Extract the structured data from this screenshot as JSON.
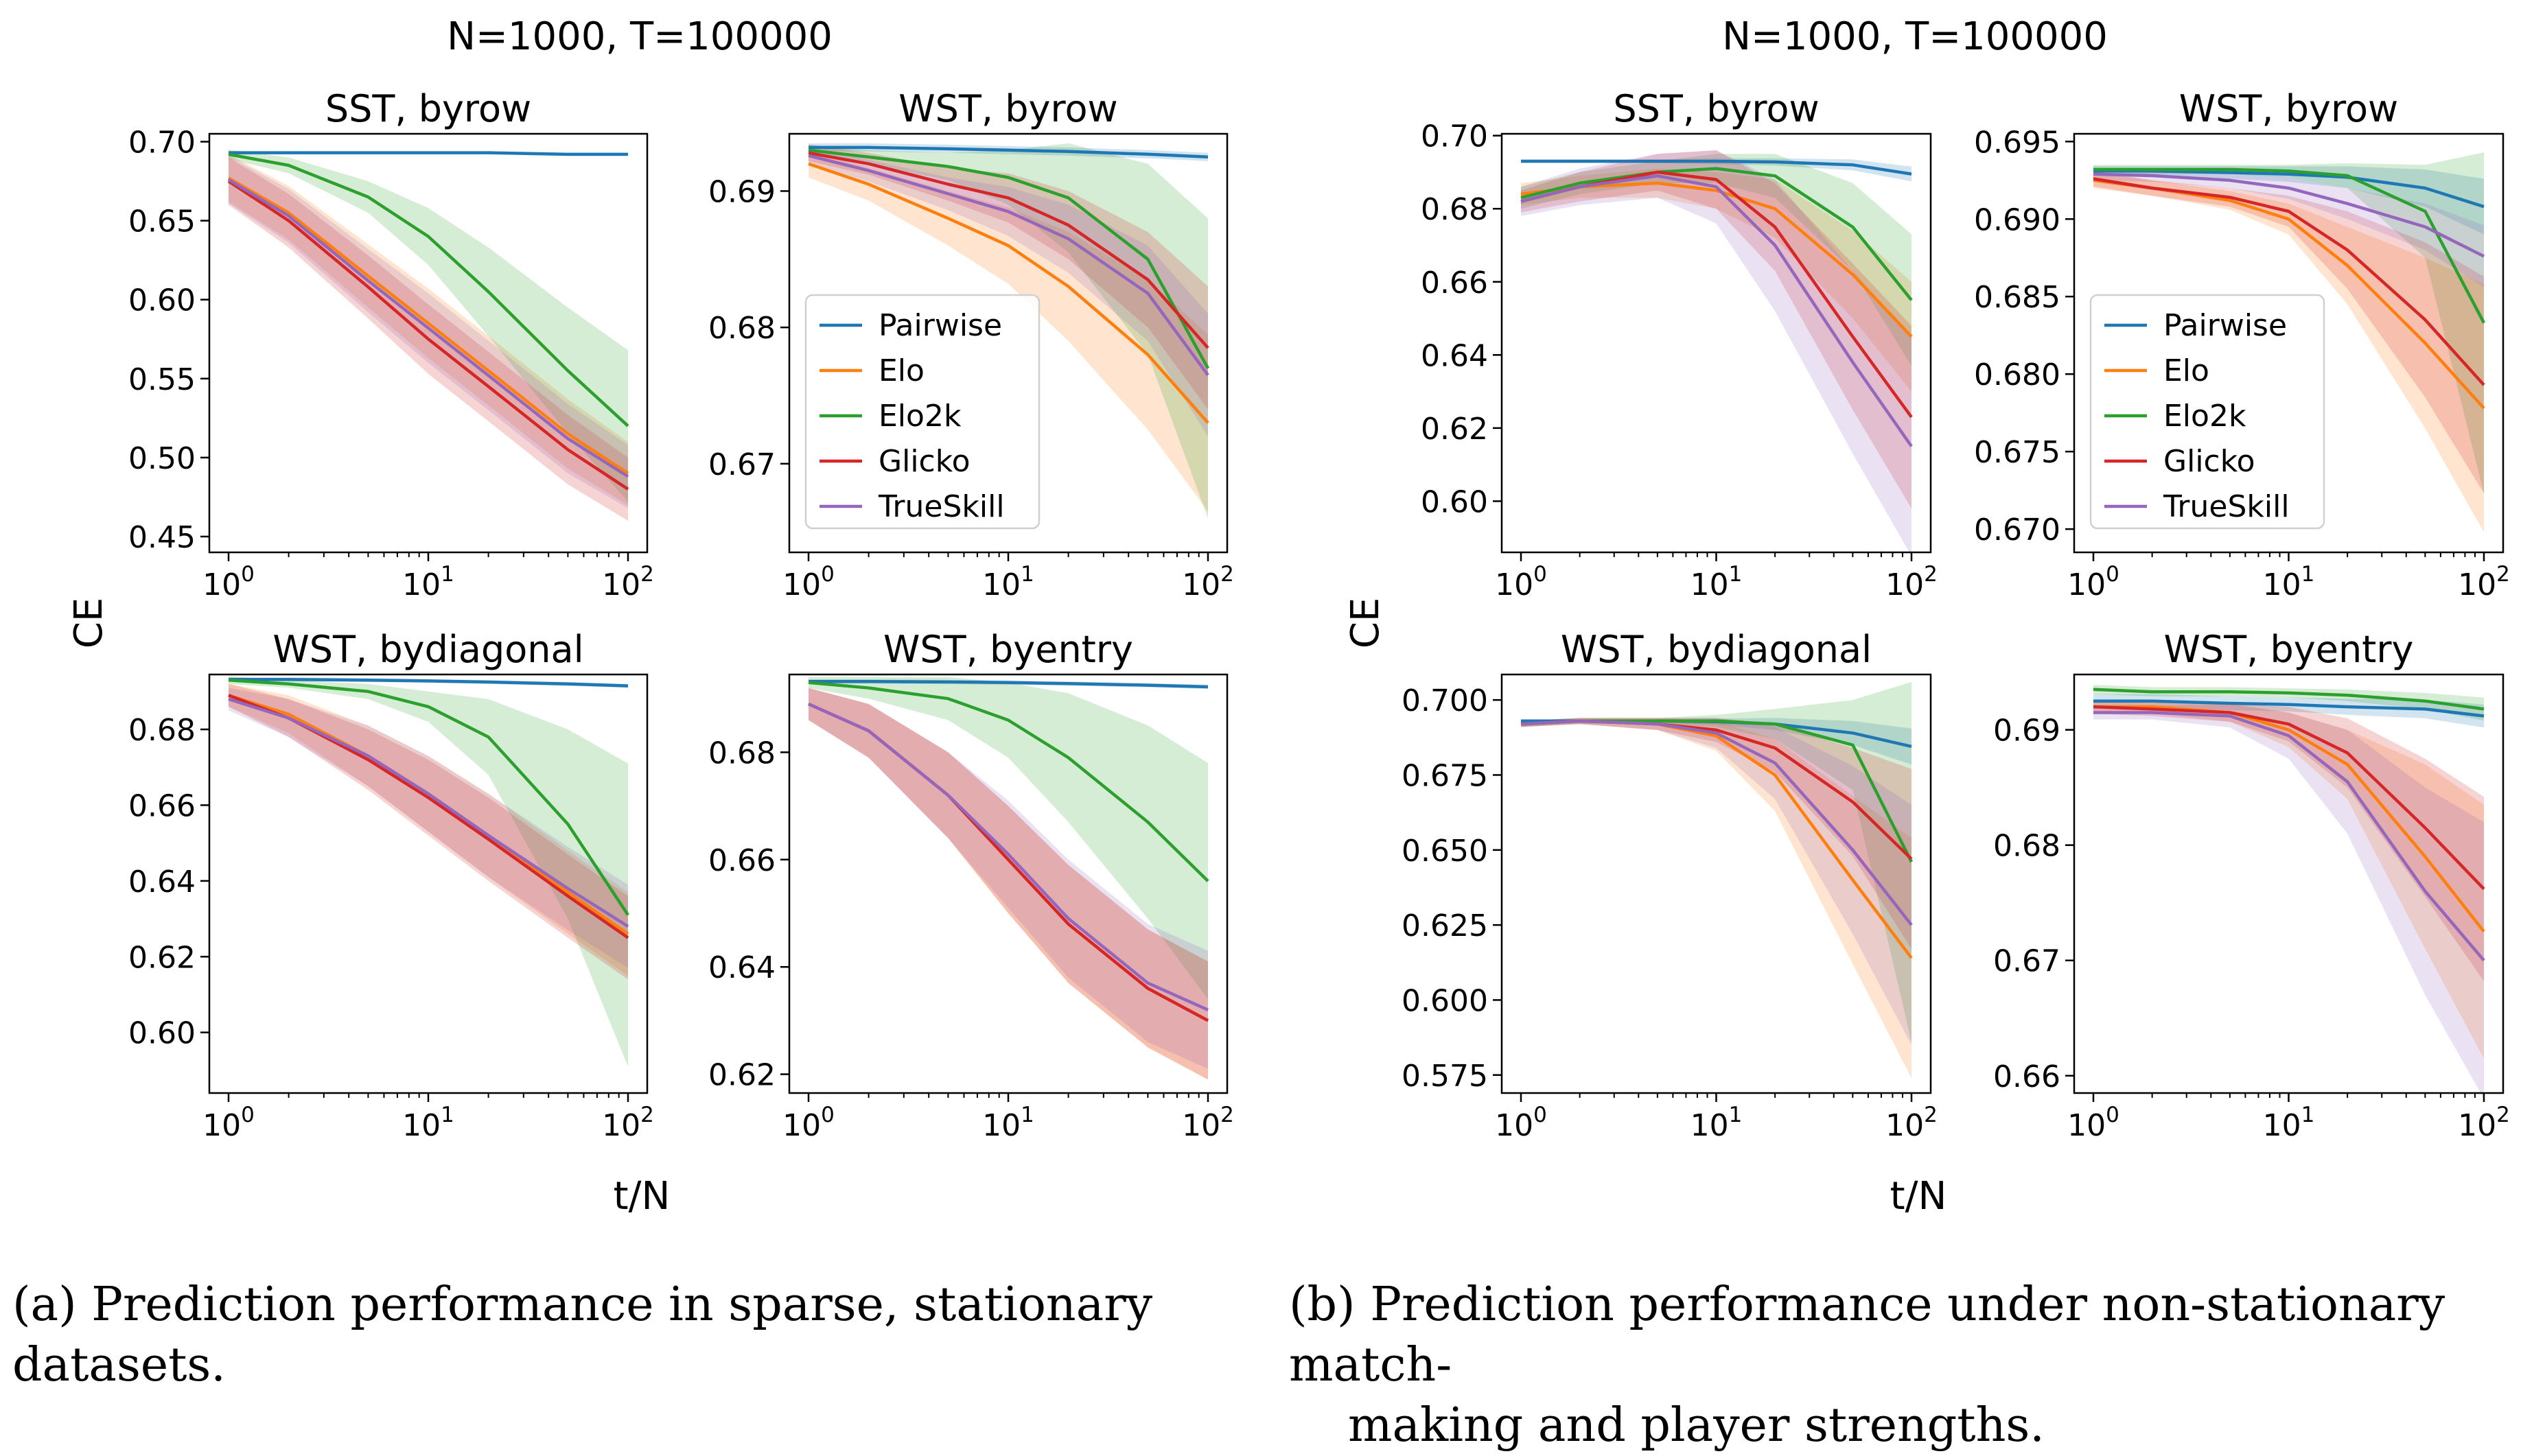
{
  "figure": {
    "panel_a": {
      "suptitle": "N=1000, T=100000",
      "ylabel": "CE",
      "xlabel": "t/N"
    },
    "panel_b": {
      "suptitle": "N=1000, T=100000",
      "ylabel": "CE",
      "xlabel": "t/N"
    },
    "legend": [
      "Pairwise",
      "Elo",
      "Elo2k",
      "Glicko",
      "TrueSkill"
    ]
  },
  "colors": {
    "Pairwise": "#1f77b4",
    "Elo": "#ff7f0e",
    "Elo2k": "#2ca02c",
    "Glicko": "#d62728",
    "TrueSkill": "#9467bd"
  },
  "captions": {
    "a": "(a) Prediction performance in sparse, stationary datasets.",
    "b_line1": "(b) Prediction performance under non-stationary match-",
    "b_line2": "making and player strengths."
  },
  "chart_data": [
    {
      "panel": "a",
      "title": "SST, byrow",
      "type": "line",
      "xscale": "log",
      "xlim": [
        1,
        100
      ],
      "ylim": [
        0.44,
        0.705
      ],
      "yticks": [
        0.45,
        0.5,
        0.55,
        0.6,
        0.65,
        0.7
      ],
      "ytick_decimals": 2,
      "legend": false,
      "x": [
        1,
        2,
        5,
        10,
        20,
        50,
        100
      ],
      "series": [
        {
          "name": "Pairwise",
          "values": [
            0.693,
            0.693,
            0.693,
            0.693,
            0.693,
            0.692,
            0.692
          ],
          "band": [
            0.001,
            0.001,
            0.001,
            0.001,
            0.001,
            0.001,
            0.001
          ]
        },
        {
          "name": "Elo",
          "values": [
            0.677,
            0.655,
            0.615,
            0.585,
            0.555,
            0.515,
            0.49
          ],
          "band": [
            0.015,
            0.017,
            0.02,
            0.022,
            0.022,
            0.022,
            0.02
          ]
        },
        {
          "name": "Elo2k",
          "values": [
            0.692,
            0.685,
            0.665,
            0.64,
            0.605,
            0.555,
            0.52
          ],
          "band": [
            0.003,
            0.005,
            0.01,
            0.018,
            0.028,
            0.04,
            0.048
          ]
        },
        {
          "name": "Glicko",
          "values": [
            0.675,
            0.65,
            0.608,
            0.575,
            0.545,
            0.505,
            0.48
          ],
          "band": [
            0.015,
            0.017,
            0.02,
            0.022,
            0.022,
            0.022,
            0.02
          ]
        },
        {
          "name": "TrueSkill",
          "values": [
            0.676,
            0.653,
            0.612,
            0.582,
            0.552,
            0.512,
            0.488
          ],
          "band": [
            0.015,
            0.017,
            0.02,
            0.022,
            0.022,
            0.022,
            0.02
          ]
        }
      ]
    },
    {
      "panel": "a",
      "title": "WST, byrow",
      "type": "line",
      "xscale": "log",
      "xlim": [
        1,
        100
      ],
      "ylim": [
        0.6635,
        0.6942
      ],
      "yticks": [
        0.67,
        0.68,
        0.69
      ],
      "ytick_decimals": 2,
      "legend": true,
      "x": [
        1,
        2,
        5,
        10,
        20,
        50,
        100
      ],
      "series": [
        {
          "name": "Pairwise",
          "values": [
            0.6932,
            0.6932,
            0.6931,
            0.693,
            0.6929,
            0.6927,
            0.6925
          ],
          "band": [
            0.0003,
            0.0003,
            0.0003,
            0.0003,
            0.0003,
            0.0003,
            0.0003
          ]
        },
        {
          "name": "Elo",
          "values": [
            0.692,
            0.6905,
            0.688,
            0.686,
            0.683,
            0.678,
            0.673
          ],
          "band": [
            0.001,
            0.0012,
            0.002,
            0.0028,
            0.004,
            0.0055,
            0.0065
          ]
        },
        {
          "name": "Elo2k",
          "values": [
            0.693,
            0.6925,
            0.6918,
            0.691,
            0.6895,
            0.685,
            0.677
          ],
          "band": [
            0.0004,
            0.0005,
            0.001,
            0.002,
            0.004,
            0.007,
            0.011
          ]
        },
        {
          "name": "Glicko",
          "values": [
            0.6928,
            0.692,
            0.6905,
            0.6895,
            0.6875,
            0.6835,
            0.6785
          ],
          "band": [
            0.0006,
            0.0008,
            0.0012,
            0.0018,
            0.0025,
            0.0035,
            0.0045
          ]
        },
        {
          "name": "TrueSkill",
          "values": [
            0.6926,
            0.6915,
            0.6898,
            0.6885,
            0.6865,
            0.6825,
            0.6765
          ],
          "band": [
            0.0006,
            0.0008,
            0.0012,
            0.0018,
            0.0025,
            0.0035,
            0.0045
          ]
        }
      ]
    },
    {
      "panel": "a",
      "title": "WST, bydiagonal",
      "type": "line",
      "xscale": "log",
      "xlim": [
        1,
        100
      ],
      "ylim": [
        0.584,
        0.6945
      ],
      "yticks": [
        0.6,
        0.62,
        0.64,
        0.66,
        0.68
      ],
      "ytick_decimals": 2,
      "legend": false,
      "x": [
        1,
        2,
        5,
        10,
        20,
        50,
        100
      ],
      "series": [
        {
          "name": "Pairwise",
          "values": [
            0.6932,
            0.6932,
            0.693,
            0.6928,
            0.6925,
            0.692,
            0.6915
          ],
          "band": [
            0.0005,
            0.0005,
            0.0005,
            0.0005,
            0.0005,
            0.0005,
            0.0005
          ]
        },
        {
          "name": "Elo",
          "values": [
            0.689,
            0.684,
            0.673,
            0.663,
            0.652,
            0.637,
            0.626
          ],
          "band": [
            0.003,
            0.005,
            0.008,
            0.01,
            0.011,
            0.011,
            0.011
          ]
        },
        {
          "name": "Elo2k",
          "values": [
            0.693,
            0.692,
            0.69,
            0.686,
            0.678,
            0.655,
            0.631
          ],
          "band": [
            0.001,
            0.001,
            0.002,
            0.004,
            0.01,
            0.025,
            0.04
          ]
        },
        {
          "name": "Glicko",
          "values": [
            0.689,
            0.683,
            0.672,
            0.662,
            0.651,
            0.636,
            0.625
          ],
          "band": [
            0.003,
            0.005,
            0.008,
            0.01,
            0.011,
            0.011,
            0.011
          ]
        },
        {
          "name": "TrueSkill",
          "values": [
            0.688,
            0.683,
            0.673,
            0.663,
            0.652,
            0.638,
            0.628
          ],
          "band": [
            0.003,
            0.005,
            0.008,
            0.01,
            0.011,
            0.011,
            0.011
          ]
        }
      ]
    },
    {
      "panel": "a",
      "title": "WST, byentry",
      "type": "line",
      "xscale": "log",
      "xlim": [
        1,
        100
      ],
      "ylim": [
        0.6165,
        0.6945
      ],
      "yticks": [
        0.62,
        0.64,
        0.66,
        0.68
      ],
      "ytick_decimals": 2,
      "legend": false,
      "x": [
        1,
        2,
        5,
        10,
        20,
        50,
        100
      ],
      "series": [
        {
          "name": "Pairwise",
          "values": [
            0.6932,
            0.6932,
            0.6931,
            0.693,
            0.6928,
            0.6925,
            0.6922
          ],
          "band": [
            0.0004,
            0.0004,
            0.0004,
            0.0004,
            0.0004,
            0.0004,
            0.0004
          ]
        },
        {
          "name": "Elo",
          "values": [
            0.689,
            0.684,
            0.672,
            0.66,
            0.648,
            0.636,
            0.63
          ],
          "band": [
            0.003,
            0.005,
            0.008,
            0.01,
            0.011,
            0.011,
            0.011
          ]
        },
        {
          "name": "Elo2k",
          "values": [
            0.693,
            0.692,
            0.69,
            0.686,
            0.679,
            0.667,
            0.656
          ],
          "band": [
            0.001,
            0.002,
            0.004,
            0.007,
            0.012,
            0.018,
            0.022
          ]
        },
        {
          "name": "Glicko",
          "values": [
            0.689,
            0.684,
            0.672,
            0.66,
            0.648,
            0.636,
            0.63
          ],
          "band": [
            0.003,
            0.005,
            0.008,
            0.01,
            0.011,
            0.011,
            0.011
          ]
        },
        {
          "name": "TrueSkill",
          "values": [
            0.689,
            0.684,
            0.672,
            0.661,
            0.649,
            0.637,
            0.632
          ],
          "band": [
            0.003,
            0.005,
            0.008,
            0.01,
            0.011,
            0.011,
            0.011
          ]
        }
      ]
    },
    {
      "panel": "b",
      "title": "SST, byrow",
      "type": "line",
      "xscale": "log",
      "xlim": [
        1,
        100
      ],
      "ylim": [
        0.586,
        0.7005
      ],
      "yticks": [
        0.6,
        0.62,
        0.64,
        0.66,
        0.68,
        0.7
      ],
      "ytick_decimals": 2,
      "legend": false,
      "x": [
        1,
        2,
        5,
        10,
        20,
        50,
        100
      ],
      "series": [
        {
          "name": "Pairwise",
          "values": [
            0.693,
            0.693,
            0.693,
            0.693,
            0.6928,
            0.692,
            0.6895
          ],
          "band": [
            0.0005,
            0.0005,
            0.0005,
            0.0008,
            0.001,
            0.0015,
            0.002
          ]
        },
        {
          "name": "Elo",
          "values": [
            0.684,
            0.686,
            0.687,
            0.685,
            0.68,
            0.662,
            0.645
          ],
          "band": [
            0.003,
            0.003,
            0.004,
            0.005,
            0.008,
            0.012,
            0.015
          ]
        },
        {
          "name": "Elo2k",
          "values": [
            0.683,
            0.687,
            0.69,
            0.691,
            0.689,
            0.675,
            0.655
          ],
          "band": [
            0.003,
            0.003,
            0.003,
            0.004,
            0.006,
            0.012,
            0.018
          ]
        },
        {
          "name": "Glicko",
          "values": [
            0.682,
            0.686,
            0.69,
            0.688,
            0.675,
            0.645,
            0.623
          ],
          "band": [
            0.003,
            0.004,
            0.005,
            0.008,
            0.012,
            0.02,
            0.025
          ]
        },
        {
          "name": "TrueSkill",
          "values": [
            0.682,
            0.686,
            0.689,
            0.686,
            0.67,
            0.638,
            0.615
          ],
          "band": [
            0.004,
            0.005,
            0.006,
            0.01,
            0.018,
            0.025,
            0.03
          ]
        }
      ]
    },
    {
      "panel": "b",
      "title": "WST, byrow",
      "type": "line",
      "xscale": "log",
      "xlim": [
        1,
        100
      ],
      "ylim": [
        0.6685,
        0.6955
      ],
      "yticks": [
        0.67,
        0.675,
        0.68,
        0.685,
        0.69,
        0.695
      ],
      "ytick_decimals": 3,
      "legend": true,
      "x": [
        1,
        2,
        5,
        10,
        20,
        50,
        100
      ],
      "series": [
        {
          "name": "Pairwise",
          "values": [
            0.6931,
            0.6931,
            0.693,
            0.6929,
            0.6927,
            0.692,
            0.6908
          ],
          "band": [
            0.0003,
            0.0003,
            0.0004,
            0.0005,
            0.0007,
            0.0012,
            0.0018
          ]
        },
        {
          "name": "Elo",
          "values": [
            0.6925,
            0.692,
            0.6912,
            0.69,
            0.687,
            0.682,
            0.6778
          ],
          "band": [
            0.0005,
            0.0005,
            0.0006,
            0.001,
            0.0025,
            0.0055,
            0.008
          ]
        },
        {
          "name": "Elo2k",
          "values": [
            0.6932,
            0.6932,
            0.6932,
            0.6931,
            0.6928,
            0.6905,
            0.6833
          ],
          "band": [
            0.0003,
            0.0003,
            0.0003,
            0.0004,
            0.0008,
            0.003,
            0.011
          ]
        },
        {
          "name": "Glicko",
          "values": [
            0.6926,
            0.692,
            0.6914,
            0.6905,
            0.688,
            0.6835,
            0.6793
          ],
          "band": [
            0.0005,
            0.0005,
            0.0006,
            0.001,
            0.0025,
            0.005,
            0.007
          ]
        },
        {
          "name": "TrueSkill",
          "values": [
            0.6929,
            0.6928,
            0.6925,
            0.692,
            0.691,
            0.6895,
            0.6876
          ],
          "band": [
            0.0004,
            0.0004,
            0.0005,
            0.0007,
            0.001,
            0.0015,
            0.002
          ]
        }
      ]
    },
    {
      "panel": "b",
      "title": "WST, bydiagonal",
      "type": "line",
      "xscale": "log",
      "xlim": [
        1,
        100
      ],
      "ylim": [
        0.569,
        0.7085
      ],
      "yticks": [
        0.575,
        0.6,
        0.625,
        0.65,
        0.675,
        0.7
      ],
      "ytick_decimals": 3,
      "legend": false,
      "x": [
        1,
        2,
        5,
        10,
        20,
        50,
        100
      ],
      "series": [
        {
          "name": "Pairwise",
          "values": [
            0.693,
            0.693,
            0.693,
            0.6928,
            0.692,
            0.689,
            0.6845
          ],
          "band": [
            0.0005,
            0.0005,
            0.0006,
            0.001,
            0.002,
            0.004,
            0.006
          ]
        },
        {
          "name": "Elo",
          "values": [
            0.692,
            0.693,
            0.692,
            0.688,
            0.675,
            0.64,
            0.614
          ],
          "band": [
            0.001,
            0.001,
            0.002,
            0.005,
            0.012,
            0.028,
            0.04
          ]
        },
        {
          "name": "Elo2k",
          "values": [
            0.692,
            0.693,
            0.693,
            0.693,
            0.692,
            0.685,
            0.646
          ],
          "band": [
            0.001,
            0.001,
            0.001,
            0.002,
            0.005,
            0.015,
            0.06
          ]
        },
        {
          "name": "Glicko",
          "values": [
            0.692,
            0.693,
            0.692,
            0.69,
            0.684,
            0.666,
            0.647
          ],
          "band": [
            0.001,
            0.001,
            0.002,
            0.004,
            0.008,
            0.018,
            0.03
          ]
        },
        {
          "name": "TrueSkill",
          "values": [
            0.692,
            0.693,
            0.692,
            0.689,
            0.679,
            0.65,
            0.625
          ],
          "band": [
            0.001,
            0.001,
            0.002,
            0.005,
            0.012,
            0.028,
            0.04
          ]
        }
      ]
    },
    {
      "panel": "b",
      "title": "WST, byentry",
      "type": "line",
      "xscale": "log",
      "xlim": [
        1,
        100
      ],
      "ylim": [
        0.6585,
        0.6948
      ],
      "yticks": [
        0.66,
        0.67,
        0.68,
        0.69
      ],
      "ytick_decimals": 2,
      "legend": false,
      "x": [
        1,
        2,
        5,
        10,
        20,
        50,
        100
      ],
      "series": [
        {
          "name": "Pairwise",
          "values": [
            0.6925,
            0.6925,
            0.6923,
            0.6922,
            0.692,
            0.6918,
            0.6912
          ],
          "band": [
            0.0006,
            0.0006,
            0.0006,
            0.0006,
            0.0007,
            0.0008,
            0.001
          ]
        },
        {
          "name": "Elo",
          "values": [
            0.692,
            0.692,
            0.6915,
            0.69,
            0.687,
            0.679,
            0.6725
          ],
          "band": [
            0.0006,
            0.0006,
            0.0008,
            0.0015,
            0.003,
            0.008,
            0.011
          ]
        },
        {
          "name": "Elo2k",
          "values": [
            0.6935,
            0.6933,
            0.6933,
            0.6932,
            0.693,
            0.6925,
            0.6918
          ],
          "band": [
            0.0004,
            0.0004,
            0.0004,
            0.0004,
            0.0005,
            0.0007,
            0.001
          ]
        },
        {
          "name": "Glicko",
          "values": [
            0.692,
            0.6918,
            0.6915,
            0.6905,
            0.688,
            0.6815,
            0.6762
          ],
          "band": [
            0.0006,
            0.0006,
            0.0008,
            0.0015,
            0.003,
            0.006,
            0.008
          ]
        },
        {
          "name": "TrueSkill",
          "values": [
            0.6915,
            0.6915,
            0.6912,
            0.6895,
            0.6855,
            0.676,
            0.67
          ],
          "band": [
            0.0006,
            0.0006,
            0.001,
            0.002,
            0.0045,
            0.009,
            0.012
          ]
        }
      ]
    }
  ]
}
